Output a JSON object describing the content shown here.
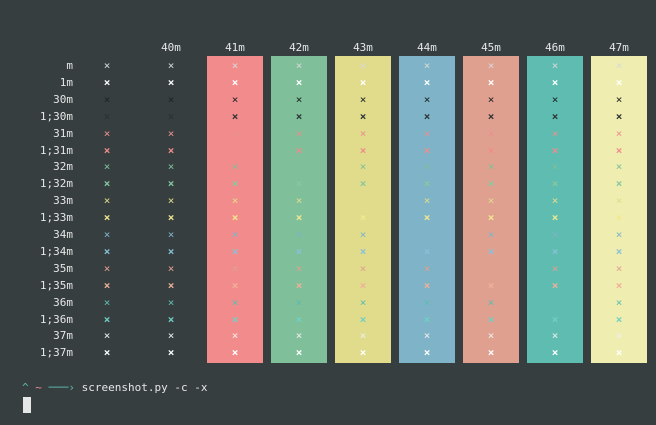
{
  "columns": [
    "40m",
    "41m",
    "42m",
    "43m",
    "44m",
    "45m",
    "46m",
    "47m"
  ],
  "col_backgrounds": [
    "",
    "#f28c8c",
    "#7fbf9a",
    "#e0dc8c",
    "#7fb3c8",
    "#e0a090",
    "#5fbcb0",
    "#efeeb0"
  ],
  "rows": [
    {
      "label": "m",
      "fg": "#d8d8d8"
    },
    {
      "label": "1m",
      "fg": "#ffffff"
    },
    {
      "label": "30m",
      "fg": "#1e2224"
    },
    {
      "label": "1;30m",
      "fg": "#2d3436"
    },
    {
      "label": "31m",
      "fg": "#e89090"
    },
    {
      "label": "1;31m",
      "fg": "#f08c8c"
    },
    {
      "label": "32m",
      "fg": "#7fbf9a"
    },
    {
      "label": "1;32m",
      "fg": "#88c8a0"
    },
    {
      "label": "33m",
      "fg": "#e0dc8c"
    },
    {
      "label": "1;33m",
      "fg": "#f0e890"
    },
    {
      "label": "34m",
      "fg": "#7fb3c8"
    },
    {
      "label": "1;34m",
      "fg": "#88c0d8"
    },
    {
      "label": "35m",
      "fg": "#e0a090"
    },
    {
      "label": "1;35m",
      "fg": "#f0b098"
    },
    {
      "label": "36m",
      "fg": "#5fbcb0"
    },
    {
      "label": "1;36m",
      "fg": "#70d0c4"
    },
    {
      "label": "37m",
      "fg": "#eeeeee"
    },
    {
      "label": "1;37m",
      "fg": "#ffffff"
    }
  ],
  "mark": "×",
  "prompt": {
    "caret": "^",
    "tilde": "~",
    "arrow": "───›",
    "command": "screenshot.py -c -x",
    "colors": {
      "caret": "#5fbcb0",
      "tilde": "#f08c8c",
      "arrow": "#5fbcb0",
      "command": "#e6e6e6"
    }
  }
}
